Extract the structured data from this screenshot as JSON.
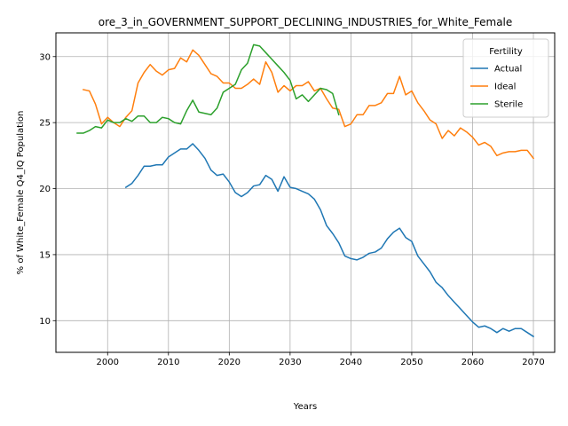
{
  "chart_data": {
    "type": "line",
    "title": "ore_3_in_GOVERNMENT_SUPPORT_DECLINING_INDUSTRIES_for_White_Female",
    "xlabel": "Years",
    "ylabel": "% of White_Female Q4_IQ Population",
    "xlim": [
      1991.5,
      2073.5
    ],
    "ylim": [
      7.6,
      31.8
    ],
    "xticks": [
      2000,
      2010,
      2020,
      2030,
      2040,
      2050,
      2060,
      2070
    ],
    "yticks": [
      10,
      15,
      20,
      25,
      30
    ],
    "grid": true,
    "legend": {
      "title": "Fertility",
      "position": "top-right"
    },
    "series": [
      {
        "name": "Actual",
        "color": "#1f77b4",
        "x": [
          2003,
          2004,
          2005,
          2006,
          2007,
          2008,
          2009,
          2010,
          2011,
          2012,
          2013,
          2014,
          2015,
          2016,
          2017,
          2018,
          2019,
          2020,
          2021,
          2022,
          2023,
          2024,
          2025,
          2026,
          2027,
          2028,
          2029,
          2030,
          2031,
          2032,
          2033,
          2034,
          2035,
          2036,
          2037,
          2038,
          2039,
          2040,
          2041,
          2042,
          2043,
          2044,
          2045,
          2046,
          2047,
          2048,
          2049,
          2050,
          2051,
          2052,
          2053,
          2054,
          2055,
          2056,
          2057,
          2058,
          2059,
          2060,
          2061,
          2062,
          2063,
          2064,
          2065,
          2066,
          2067,
          2068,
          2069,
          2070
        ],
        "y": [
          20.1,
          20.4,
          21.0,
          21.7,
          21.7,
          21.8,
          21.8,
          22.4,
          22.7,
          23.0,
          23.0,
          23.4,
          22.9,
          22.3,
          21.4,
          21.0,
          21.1,
          20.5,
          19.7,
          19.4,
          19.7,
          20.2,
          20.3,
          21.0,
          20.7,
          19.8,
          20.9,
          20.1,
          20.0,
          19.8,
          19.6,
          19.2,
          18.4,
          17.2,
          16.6,
          15.9,
          14.9,
          14.7,
          14.6,
          14.8,
          15.1,
          15.2,
          15.5,
          16.2,
          16.7,
          17.0,
          16.3,
          16.0,
          14.9,
          14.3,
          13.7,
          12.9,
          12.5,
          11.9,
          11.4,
          10.9,
          10.4,
          9.9,
          9.5,
          9.6,
          9.4,
          9.1,
          9.4,
          9.2,
          9.4,
          9.4,
          9.1,
          8.8
        ]
      },
      {
        "name": "Ideal",
        "color": "#ff7f0e",
        "x": [
          1996,
          1997,
          1998,
          1999,
          2000,
          2001,
          2002,
          2003,
          2004,
          2005,
          2006,
          2007,
          2008,
          2009,
          2010,
          2011,
          2012,
          2013,
          2014,
          2015,
          2016,
          2017,
          2018,
          2019,
          2020,
          2021,
          2022,
          2023,
          2024,
          2025,
          2026,
          2027,
          2028,
          2029,
          2030,
          2031,
          2032,
          2033,
          2034,
          2035,
          2036,
          2037,
          2038,
          2039,
          2040,
          2041,
          2042,
          2043,
          2044,
          2045,
          2046,
          2047,
          2048,
          2049,
          2050,
          2051,
          2052,
          2053,
          2054,
          2055,
          2056,
          2057,
          2058,
          2059,
          2060,
          2061,
          2062,
          2063,
          2064,
          2065,
          2066,
          2067,
          2068,
          2069,
          2070
        ],
        "y": [
          27.5,
          27.4,
          26.4,
          24.9,
          25.4,
          25.0,
          24.7,
          25.4,
          25.9,
          28.0,
          28.8,
          29.4,
          28.9,
          28.6,
          29.0,
          29.1,
          29.9,
          29.6,
          30.5,
          30.1,
          29.4,
          28.7,
          28.5,
          28.0,
          28.0,
          27.6,
          27.6,
          27.9,
          28.3,
          27.9,
          29.6,
          28.8,
          27.3,
          27.8,
          27.4,
          27.8,
          27.8,
          28.1,
          27.4,
          27.6,
          26.8,
          26.1,
          26.0,
          24.7,
          24.9,
          25.6,
          25.6,
          26.3,
          26.3,
          26.5,
          27.2,
          27.2,
          28.5,
          27.1,
          27.4,
          26.5,
          25.9,
          25.2,
          24.9,
          23.8,
          24.4,
          24.0,
          24.6,
          24.3,
          23.9,
          23.3,
          23.5,
          23.2,
          22.5,
          22.7,
          22.8,
          22.8,
          22.9,
          22.9,
          22.3
        ]
      },
      {
        "name": "Sterile",
        "color": "#2ca02c",
        "x": [
          1995,
          1996,
          1997,
          1998,
          1999,
          2000,
          2001,
          2002,
          2003,
          2004,
          2005,
          2006,
          2007,
          2008,
          2009,
          2010,
          2011,
          2012,
          2013,
          2014,
          2015,
          2016,
          2017,
          2018,
          2019,
          2020,
          2021,
          2022,
          2023,
          2024,
          2025,
          2026,
          2027,
          2028,
          2029,
          2030,
          2031,
          2032,
          2033,
          2034,
          2035,
          2036,
          2037,
          2038
        ],
        "y": [
          24.2,
          24.2,
          24.4,
          24.7,
          24.6,
          25.2,
          25.0,
          25.0,
          25.3,
          25.1,
          25.5,
          25.5,
          25.0,
          25.0,
          25.4,
          25.3,
          25.0,
          24.9,
          25.9,
          26.7,
          25.8,
          25.7,
          25.6,
          26.1,
          27.3,
          27.6,
          27.9,
          29.0,
          29.5,
          30.9,
          30.8,
          30.3,
          29.8,
          29.3,
          28.8,
          28.2,
          26.8,
          27.1,
          26.6,
          27.1,
          27.6,
          27.5,
          27.2,
          25.6
        ]
      }
    ]
  }
}
